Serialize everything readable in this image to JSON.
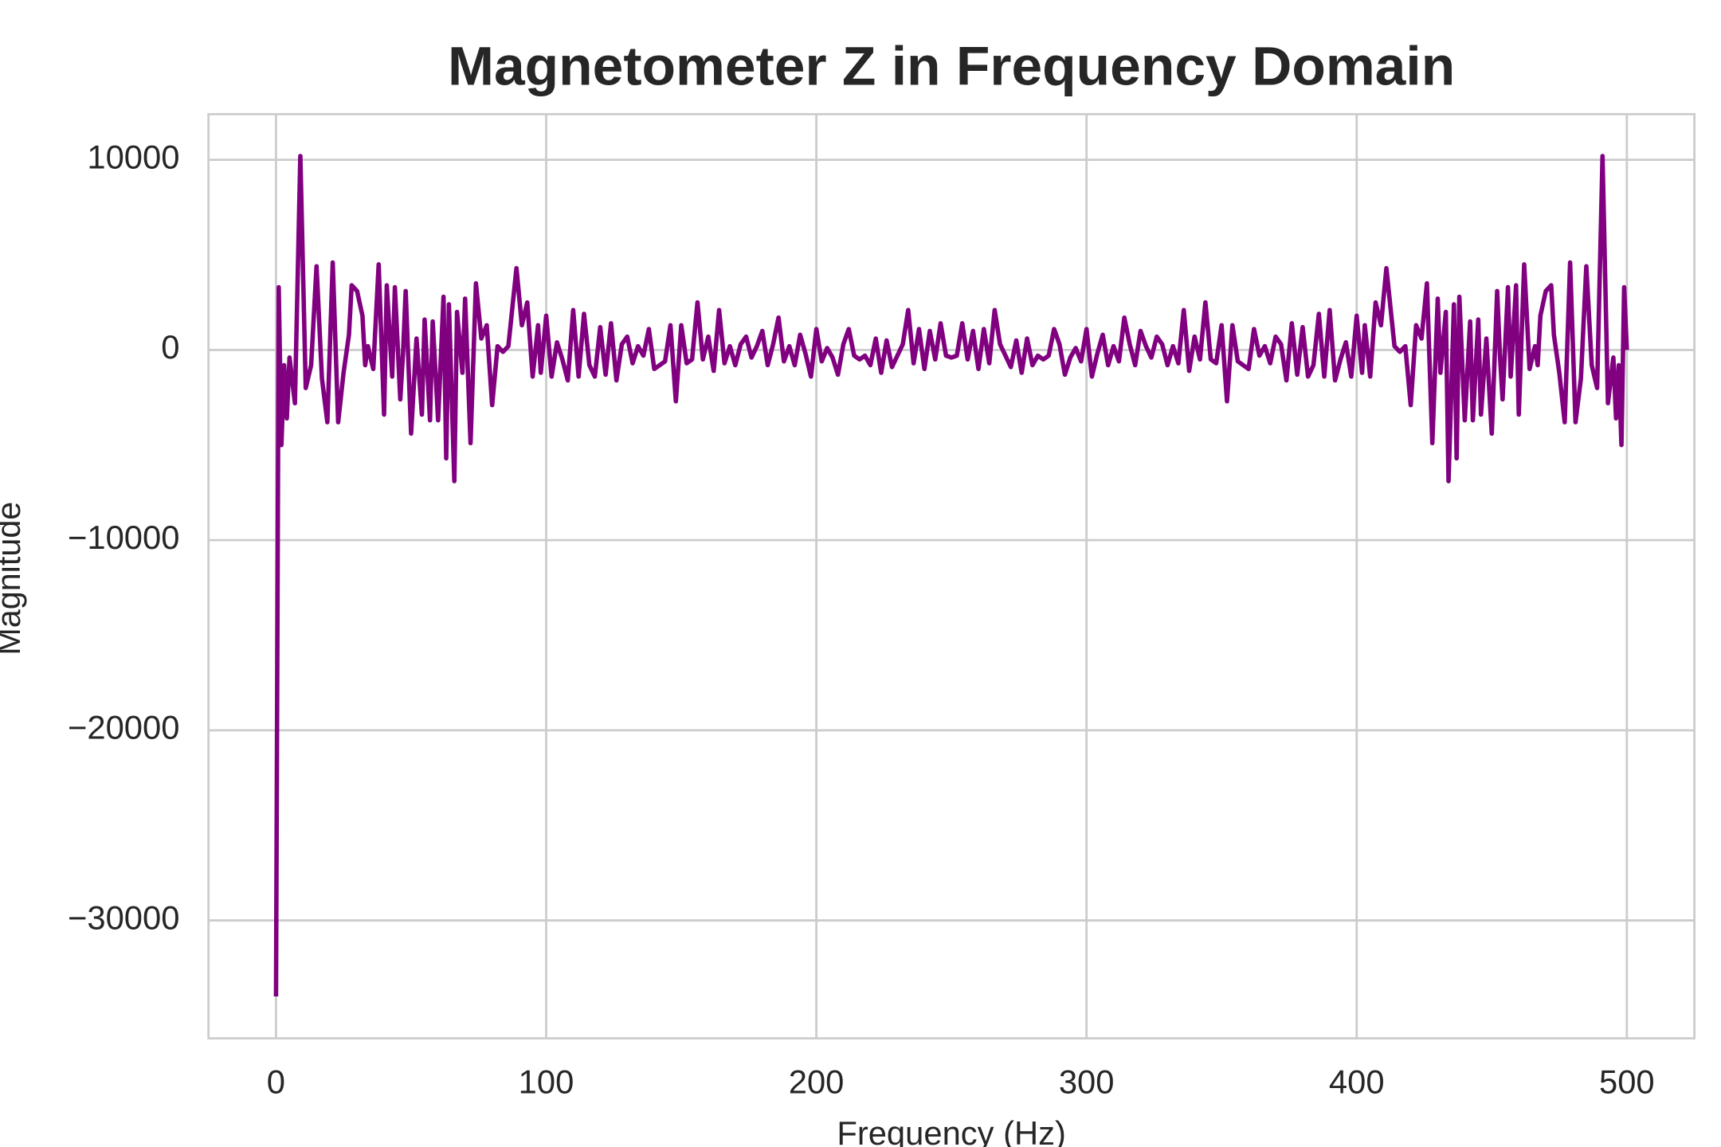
{
  "chart_data": {
    "type": "line",
    "title": "Magnetometer Z in Frequency Domain",
    "x_label": "Frequency (Hz)",
    "y_label": "Magnitude",
    "color": "#800080",
    "grid": true,
    "xlim": [
      -25,
      525
    ],
    "ylim": [
      -36200,
      12400
    ],
    "xticks": [
      0,
      100,
      200,
      300,
      400,
      500
    ],
    "yticks": [
      {
        "value": -30000,
        "label": "−30000"
      },
      {
        "value": -20000,
        "label": "−20000"
      },
      {
        "value": -10000,
        "label": "−10000"
      },
      0,
      10000
    ],
    "x": [
      0,
      1,
      2,
      3,
      4,
      5,
      7,
      9,
      11,
      13,
      15,
      17,
      19,
      21,
      23,
      25,
      27,
      28,
      30,
      32,
      33,
      34,
      36,
      38,
      40,
      41,
      43,
      44,
      46,
      47,
      48,
      50,
      52,
      54,
      55,
      57,
      58,
      60,
      62,
      63,
      64,
      66,
      67,
      69,
      70,
      72,
      74,
      76,
      78,
      80,
      82,
      84,
      86,
      89,
      91,
      93,
      95,
      97,
      98,
      100,
      102,
      104,
      106,
      108,
      110,
      112,
      114,
      116,
      118,
      120,
      122,
      124,
      126,
      128,
      130,
      132,
      134,
      136,
      138,
      140,
      142,
      144,
      146,
      148,
      150,
      152,
      154,
      156,
      158,
      160,
      162,
      164,
      166,
      168,
      170,
      172,
      174,
      176,
      178,
      180,
      182,
      184,
      186,
      188,
      190,
      192,
      194,
      196,
      198,
      200,
      202,
      204,
      206,
      208,
      210,
      212,
      214,
      216,
      218,
      220,
      222,
      224,
      226,
      228,
      230,
      232,
      234,
      236,
      238,
      240,
      242,
      244,
      246,
      248,
      250,
      252,
      254,
      256,
      258,
      260,
      262,
      264,
      266,
      268,
      270,
      272,
      274,
      276,
      278,
      280,
      282,
      284,
      286,
      288,
      290,
      292,
      294,
      296,
      298,
      300,
      302,
      304,
      306,
      308,
      310,
      312,
      314,
      316,
      318,
      320,
      322,
      324,
      326,
      328,
      330,
      332,
      334,
      336,
      338,
      340,
      342,
      344,
      346,
      348,
      350,
      352,
      354,
      356,
      358,
      360,
      362,
      364,
      366,
      368,
      370,
      372,
      374,
      376,
      378,
      380,
      382,
      384,
      386,
      388,
      390,
      392,
      394,
      396,
      398,
      400,
      402,
      403,
      405,
      407,
      409,
      411,
      414,
      416,
      418,
      420,
      422,
      424,
      426,
      428,
      430,
      431,
      433,
      434,
      436,
      437,
      438,
      440,
      442,
      443,
      445,
      446,
      448,
      450,
      452,
      453,
      454,
      456,
      457,
      459,
      460,
      462,
      464,
      466,
      467,
      468,
      470,
      472,
      473,
      475,
      477,
      479,
      481,
      483,
      485,
      487,
      489,
      491,
      493,
      495,
      496,
      497,
      498,
      499,
      500
    ],
    "values": [
      -34000,
      3300,
      -5000,
      -800,
      -3600,
      -400,
      -2800,
      10200,
      -2000,
      -800,
      4400,
      -1500,
      -3800,
      4600,
      -3800,
      -1200,
      800,
      3400,
      3100,
      1800,
      -800,
      200,
      -1000,
      4500,
      -3400,
      3400,
      -1400,
      3300,
      -2600,
      -200,
      3100,
      -4400,
      600,
      -3400,
      1600,
      -3700,
      1500,
      -3700,
      2800,
      -5700,
      2400,
      -6900,
      2000,
      -1200,
      2700,
      -4900,
      3500,
      600,
      1300,
      -2900,
      200,
      -100,
      200,
      4300,
      1300,
      2500,
      -1400,
      1300,
      -1200,
      1800,
      -1400,
      400,
      -500,
      -1600,
      2100,
      -1400,
      1900,
      -800,
      -1400,
      1200,
      -1300,
      1400,
      -1600,
      300,
      700,
      -700,
      200,
      -300,
      1100,
      -1000,
      -800,
      -600,
      1300,
      -2700,
      1300,
      -700,
      -500,
      2500,
      -500,
      700,
      -1100,
      2100,
      -700,
      200,
      -800,
      300,
      700,
      -400,
      200,
      1000,
      -800,
      300,
      1700,
      -600,
      200,
      -800,
      800,
      -200,
      -1400,
      1100,
      -600,
      100,
      -400,
      -1300,
      300,
      1100,
      -300,
      -500,
      -300,
      -800,
      600,
      -1200,
      500,
      -900,
      -300,
      300,
      2100,
      -700,
      1100,
      -1000,
      1000,
      -500,
      1400,
      -300,
      -400,
      -300,
      1400,
      -500,
      1000,
      -1000,
      1100,
      -700,
      2100,
      300,
      -300,
      -900,
      500,
      -1200,
      600,
      -800,
      -300,
      -500,
      -300,
      1100,
      300,
      -1300,
      -400,
      100,
      -600,
      1100,
      -1400,
      -200,
      800,
      -800,
      200,
      -600,
      1700,
      300,
      -800,
      1000,
      200,
      -400,
      700,
      300,
      -800,
      200,
      -700,
      2100,
      -1100,
      700,
      -500,
      2500,
      -500,
      -700,
      1300,
      -2700,
      1300,
      -600,
      -800,
      -1000,
      1100,
      -300,
      200,
      -700,
      700,
      300,
      -1600,
      1400,
      -1300,
      1200,
      -1400,
      -800,
      1900,
      -1400,
      2100,
      -1600,
      -500,
      400,
      -1400,
      1800,
      -1200,
      1300,
      -1400,
      2500,
      1300,
      4300,
      200,
      -100,
      200,
      -2900,
      1300,
      600,
      3500,
      -4900,
      2700,
      -1200,
      2000,
      -6900,
      2400,
      -5700,
      2800,
      -3700,
      1500,
      -3700,
      1600,
      -3400,
      600,
      -4400,
      3100,
      -200,
      -2600,
      3300,
      -1400,
      3400,
      -3400,
      4500,
      -1000,
      200,
      -800,
      1800,
      3100,
      3400,
      800,
      -1200,
      -3800,
      4600,
      -3800,
      -1500,
      4400,
      -800,
      -2000,
      10200,
      -2800,
      -400,
      -3600,
      -800,
      -5000,
      3300,
      0
    ]
  }
}
